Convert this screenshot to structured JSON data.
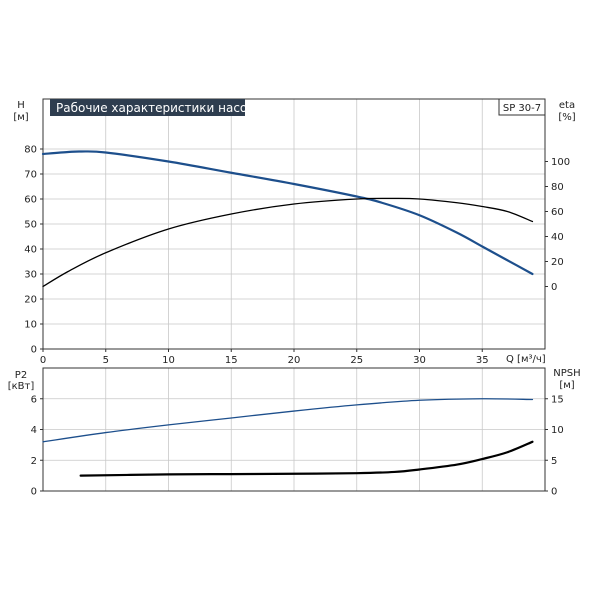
{
  "colors": {
    "blue": "#1d4f8c",
    "black": "#000000",
    "title_bg": "#2e3d4f",
    "grid": "#c8c8c8"
  },
  "chart_data": [
    {
      "type": "line",
      "title": "Рабочие характеристики насоса",
      "model_label": "SP 30-7",
      "xlabel": "Q [м³/ч]",
      "ylabel_left": [
        "H",
        "[м]"
      ],
      "ylabel_right": [
        "eta",
        "[%]"
      ],
      "xlim": [
        0,
        40
      ],
      "ylim_left": [
        0,
        100
      ],
      "ylim_right": [
        -50,
        150
      ],
      "x_ticks": [
        0,
        5,
        10,
        15,
        20,
        25,
        30,
        35
      ],
      "y_ticks_left": [
        0,
        10,
        20,
        30,
        40,
        50,
        60,
        70,
        80
      ],
      "y_ticks_right": [
        0,
        20,
        40,
        60,
        80,
        100
      ],
      "grid": true,
      "series": [
        {
          "axis": "left",
          "color": "#1d4f8c",
          "x": [
            0,
            2,
            3,
            5,
            10,
            15,
            20,
            25,
            27,
            30,
            33,
            35,
            37,
            39
          ],
          "y": [
            78,
            78.8,
            79,
            78.6,
            75,
            70.5,
            66,
            61,
            58.5,
            53.5,
            46.5,
            41,
            35.5,
            30
          ]
        },
        {
          "axis": "right",
          "color": "#000000",
          "x": [
            0,
            2,
            5,
            10,
            15,
            20,
            25,
            28,
            30,
            33,
            35,
            37,
            39
          ],
          "y": [
            0,
            12,
            27,
            46,
            58,
            66,
            70,
            70.5,
            70,
            67,
            64,
            60,
            52
          ]
        }
      ]
    },
    {
      "type": "line",
      "ylabel_left": [
        "P2",
        "[кВт]"
      ],
      "ylabel_right": [
        "NPSH",
        "[м]"
      ],
      "xlim": [
        0,
        40
      ],
      "ylim_left": [
        0,
        8
      ],
      "ylim_right": [
        0,
        20
      ],
      "y_ticks_left": [
        0,
        2,
        4,
        6
      ],
      "y_ticks_right": [
        0,
        5,
        10,
        15
      ],
      "grid": true,
      "series": [
        {
          "axis": "left",
          "color": "#1d4f8c",
          "x": [
            0,
            5,
            10,
            15,
            20,
            25,
            30,
            35,
            39
          ],
          "y": [
            3.2,
            3.8,
            4.3,
            4.75,
            5.2,
            5.6,
            5.9,
            6.0,
            5.95
          ]
        },
        {
          "axis": "right",
          "color": "#000000",
          "x": [
            3,
            10,
            15,
            20,
            25,
            28,
            30,
            33,
            35,
            37,
            39
          ],
          "y": [
            2.5,
            2.7,
            2.75,
            2.8,
            2.9,
            3.1,
            3.5,
            4.3,
            5.2,
            6.3,
            8
          ]
        }
      ]
    }
  ]
}
